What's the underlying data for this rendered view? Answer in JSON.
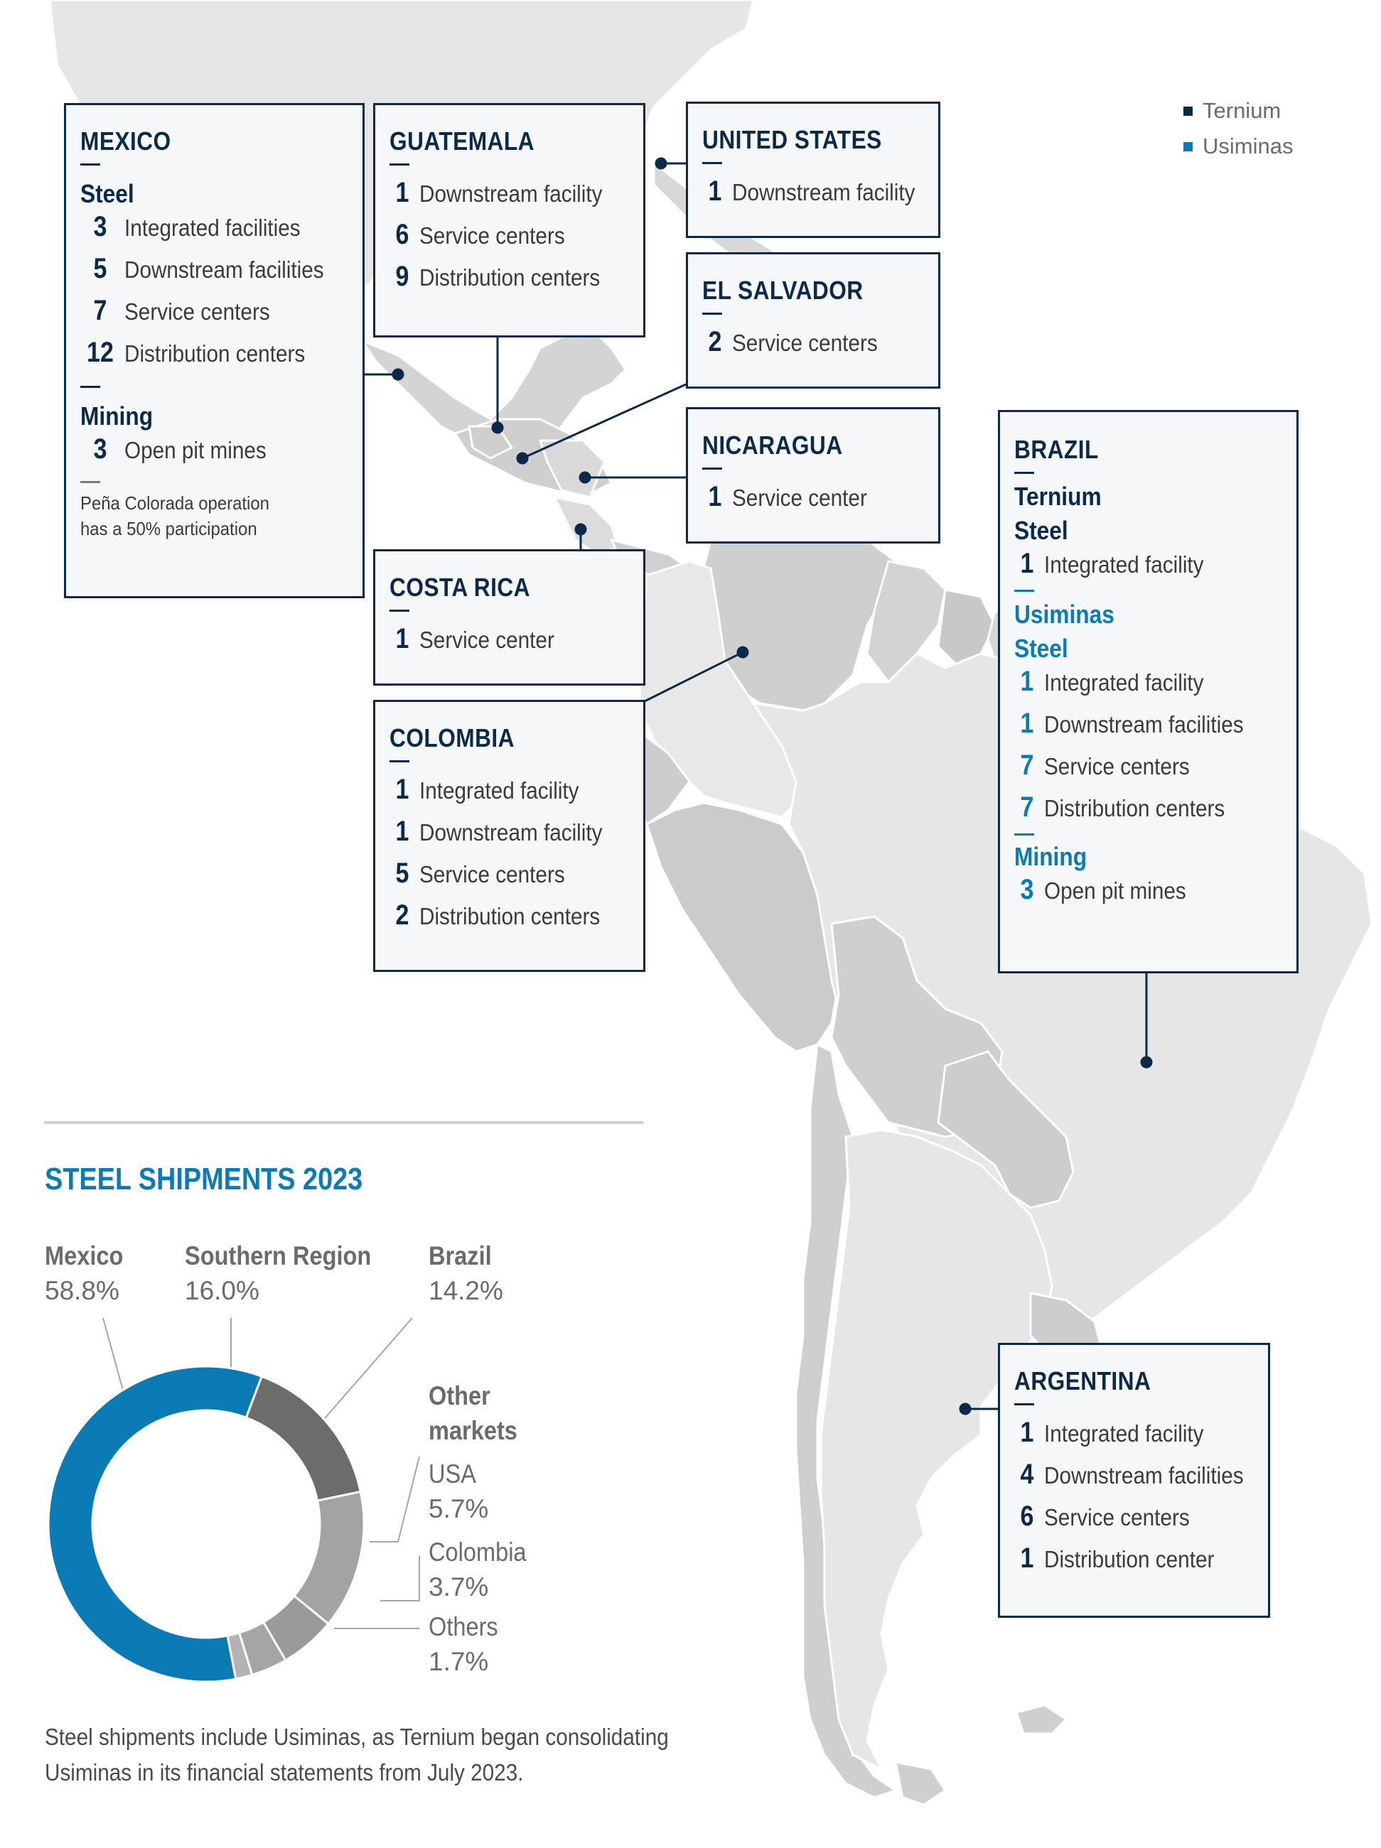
{
  "legend": [
    {
      "label": "Ternium",
      "color": "#0b2a4a"
    },
    {
      "label": "Usiminas",
      "color": "#0b7bb5"
    }
  ],
  "countries": {
    "mexico": {
      "name": "MEXICO",
      "steel_heading": "Steel",
      "steel": [
        {
          "count": "3",
          "label": "Integrated facilities"
        },
        {
          "count": "5",
          "label": "Downstream facilities"
        },
        {
          "count": "7",
          "label": "Service centers"
        },
        {
          "count": "12",
          "label": "Distribution centers"
        }
      ],
      "mining_heading": "Mining",
      "mining": [
        {
          "count": "3",
          "label": "Open pit mines"
        }
      ],
      "note": "Peña Colorada operation\nhas a 50% participation"
    },
    "guatemala": {
      "name": "GUATEMALA",
      "items": [
        {
          "count": "1",
          "label": "Downstream facility"
        },
        {
          "count": "6",
          "label": "Service centers"
        },
        {
          "count": "9",
          "label": "Distribution centers"
        }
      ]
    },
    "united_states": {
      "name": "UNITED STATES",
      "items": [
        {
          "count": "1",
          "label": "Downstream facility"
        }
      ]
    },
    "el_salvador": {
      "name": "EL SALVADOR",
      "items": [
        {
          "count": "2",
          "label": "Service centers"
        }
      ]
    },
    "nicaragua": {
      "name": "NICARAGUA",
      "items": [
        {
          "count": "1",
          "label": "Service center"
        }
      ]
    },
    "costa_rica": {
      "name": "COSTA RICA",
      "items": [
        {
          "count": "1",
          "label": "Service center"
        }
      ]
    },
    "colombia": {
      "name": "COLOMBIA",
      "items": [
        {
          "count": "1",
          "label": "Integrated facility"
        },
        {
          "count": "1",
          "label": "Downstream facility"
        },
        {
          "count": "5",
          "label": "Service centers"
        },
        {
          "count": "2",
          "label": "Distribution centers"
        }
      ]
    },
    "brazil": {
      "name": "BRAZIL",
      "ternium_heading": "Ternium",
      "ternium_steel_heading": "Steel",
      "ternium_steel": [
        {
          "count": "1",
          "label": "Integrated facility"
        }
      ],
      "usiminas_heading": "Usiminas",
      "usiminas_steel_heading": "Steel",
      "usiminas_steel": [
        {
          "count": "1",
          "label": "Integrated facility"
        },
        {
          "count": "1",
          "label": "Downstream facilities"
        },
        {
          "count": "7",
          "label": "Service centers"
        },
        {
          "count": "7",
          "label": "Distribution centers"
        }
      ],
      "usiminas_mining_heading": "Mining",
      "usiminas_mining": [
        {
          "count": "3",
          "label": "Open pit mines"
        }
      ]
    },
    "argentina": {
      "name": "ARGENTINA",
      "items": [
        {
          "count": "1",
          "label": "Integrated facility"
        },
        {
          "count": "4",
          "label": "Downstream facilities"
        },
        {
          "count": "6",
          "label": "Service centers"
        },
        {
          "count": "1",
          "label": "Distribution center"
        }
      ]
    }
  },
  "chart_data": {
    "type": "pie",
    "title": "STEEL SHIPMENTS 2023",
    "donut": true,
    "categories": [
      "Mexico",
      "Southern Region",
      "Brazil",
      "USA",
      "Colombia",
      "Others"
    ],
    "values": [
      58.8,
      16.0,
      14.2,
      5.7,
      3.7,
      1.7
    ],
    "value_labels": [
      "58.8%",
      "16.0%",
      "14.2%",
      "5.7%",
      "3.7%",
      "1.7%"
    ],
    "colors": [
      "#0b7bb5",
      "#6e6b6b",
      "#a4a2a4",
      "#9b999b",
      "#a6a4a6",
      "#b4b2b4"
    ],
    "group_label": "Other\nmarkets",
    "footnote": "Steel shipments include Usiminas, as Ternium began consolidating\nUsiminas in its financial statements from July 2023."
  }
}
